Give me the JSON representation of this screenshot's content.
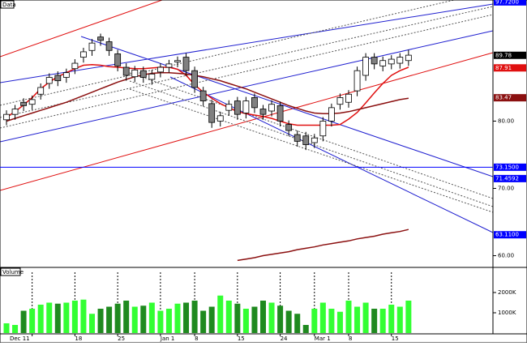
{
  "chart_data": {
    "type": "candlestick",
    "title": "Data",
    "categories": [
      null,
      null,
      null,
      "Dec 11",
      null,
      null,
      null,
      null,
      "18",
      null,
      null,
      null,
      null,
      "25",
      null,
      null,
      null,
      null,
      "Jan 1",
      null,
      null,
      null,
      "8",
      null,
      null,
      null,
      null,
      "15",
      null,
      null,
      null,
      null,
      "24",
      null,
      null,
      null,
      "Mar 1",
      null,
      null,
      null,
      "8",
      null,
      null,
      null,
      null,
      "15",
      null,
      null
    ],
    "open": [
      80.2,
      81.0,
      82.8,
      82.5,
      84.0,
      85.6,
      86.8,
      86.5,
      87.8,
      89.5,
      90.5,
      92.5,
      91.8,
      90.0,
      88.0,
      86.6,
      87.5,
      86.2,
      87.3,
      88.0,
      88.8,
      89.5,
      87.5,
      84.5,
      82.6,
      80.0,
      81.6,
      83.0,
      81.2,
      83.5,
      81.8,
      81.5,
      82.3,
      79.5,
      78.0,
      77.8,
      76.8,
      77.8,
      80.0,
      82.5,
      82.8,
      84.5,
      86.8,
      89.5,
      88.2,
      88.5,
      88.6,
      89.0
    ],
    "high": [
      81.6,
      82.4,
      83.4,
      83.8,
      85.6,
      87.1,
      87.4,
      87.8,
      89.2,
      90.9,
      92.2,
      93.0,
      92.4,
      90.6,
      88.6,
      88.2,
      88.1,
      87.6,
      88.6,
      89.1,
      89.6,
      90.1,
      88.1,
      85.1,
      83.2,
      81.4,
      83.1,
      83.6,
      83.6,
      84.1,
      82.4,
      83.1,
      82.9,
      80.1,
      78.6,
      78.4,
      78.1,
      80.6,
      82.6,
      84.1,
      84.6,
      88.1,
      90.1,
      90.1,
      89.6,
      89.8,
      90.1,
      90.6
    ],
    "low": [
      79.4,
      80.2,
      81.5,
      81.7,
      83.2,
      84.8,
      85.2,
      85.7,
      87.0,
      88.7,
      89.7,
      91.2,
      89.7,
      87.4,
      86.0,
      85.8,
      85.7,
      85.4,
      86.5,
      87.2,
      88.0,
      86.7,
      84.2,
      82.2,
      79.0,
      79.2,
      80.8,
      80.2,
      80.4,
      81.2,
      80.2,
      80.7,
      79.2,
      77.8,
      76.2,
      75.7,
      76.0,
      77.0,
      79.2,
      81.7,
      82.0,
      83.7,
      86.0,
      87.7,
      87.4,
      87.7,
      87.8,
      88.2
    ],
    "close": [
      81.0,
      81.8,
      82.3,
      83.2,
      85.0,
      86.5,
      86.0,
      87.2,
      88.6,
      90.3,
      91.6,
      92.0,
      90.5,
      88.2,
      86.8,
      87.6,
      86.5,
      87.0,
      88.0,
      88.5,
      89.0,
      87.5,
      85.0,
      83.0,
      79.8,
      80.8,
      82.5,
      81.0,
      83.0,
      82.0,
      81.0,
      82.5,
      80.0,
      78.6,
      77.0,
      76.5,
      77.5,
      80.0,
      82.0,
      83.5,
      84.0,
      87.5,
      89.5,
      88.5,
      89.0,
      89.2,
      89.5,
      89.8
    ],
    "up_color": "#ffffff",
    "down_color": "#808080",
    "series": [
      {
        "color": "#e01010",
        "values": [
          80.6,
          81.4,
          82.4,
          83.5,
          84.8,
          85.8,
          86.6,
          87.2,
          87.8,
          88.3,
          88.4,
          88.3,
          88.1,
          88.0,
          87.9,
          87.8,
          87.8,
          87.9,
          88.0,
          88.0,
          87.7,
          86.8,
          85.4,
          84.3,
          83.4,
          82.6,
          82.0,
          81.4,
          81.1,
          80.9,
          80.7,
          80.4,
          80.0,
          79.6,
          79.4,
          79.4,
          79.4,
          79.4,
          79.4,
          79.5,
          80.3,
          81.3,
          82.7,
          84.2,
          85.6,
          86.8,
          87.5,
          88.0
        ]
      },
      {
        "color": "#8b1010",
        "values": [
          80.0,
          80.4,
          80.8,
          81.2,
          81.6,
          82.0,
          82.4,
          82.8,
          83.3,
          83.8,
          84.3,
          84.8,
          85.3,
          85.8,
          86.2,
          86.6,
          86.9,
          87.1,
          87.2,
          87.2,
          87.1,
          87.0,
          86.8,
          86.6,
          86.3,
          86.0,
          85.6,
          85.2,
          84.8,
          84.3,
          83.8,
          83.3,
          82.8,
          82.3,
          81.9,
          81.5,
          81.2,
          81.1,
          81.1,
          81.2,
          81.4,
          81.7,
          82.0,
          82.3,
          82.6,
          82.9,
          83.2,
          83.4
        ]
      },
      {
        "color": "#8b1010",
        "values": [
          null,
          null,
          null,
          null,
          null,
          null,
          null,
          null,
          null,
          null,
          null,
          null,
          null,
          null,
          null,
          null,
          null,
          null,
          null,
          null,
          null,
          null,
          null,
          null,
          null,
          null,
          null,
          59.3,
          59.5,
          59.7,
          60.0,
          60.2,
          60.4,
          60.6,
          60.9,
          61.1,
          61.3,
          61.6,
          61.8,
          62.0,
          62.2,
          62.5,
          62.7,
          62.9,
          63.2,
          63.4,
          63.6,
          63.9
        ]
      }
    ],
    "ylim": [
      58.5,
      98
    ],
    "yticks": [
      {
        "value": 60,
        "label": "60.00"
      },
      {
        "value": 70,
        "label": "70.00"
      },
      {
        "value": 80,
        "label": "80.00"
      }
    ],
    "price_lines": [
      {
        "value": 73.15,
        "label": "73.1500",
        "color": "#0000ff"
      }
    ],
    "markers": [
      {
        "value": 97.72,
        "label": "97.7200",
        "color": "#0000ff"
      },
      {
        "value": 89.78,
        "label": "89.78",
        "color": "#000000"
      },
      {
        "value": 87.91,
        "label": "87.91",
        "color": "#e01010"
      },
      {
        "value": 83.47,
        "label": "83.47",
        "color": "#8b1010"
      },
      {
        "value": 71.4592,
        "label": "71.4592",
        "color": "#0000ff"
      },
      {
        "value": 63.11,
        "label": "63.1100",
        "color": "#0000ff"
      }
    ],
    "volume": {
      "title": "Volume",
      "up_color": "#33ff33",
      "down_color": "#1f8a1f",
      "values": [
        480,
        400,
        1100,
        1200,
        1400,
        1500,
        1450,
        1500,
        1600,
        1650,
        950,
        1200,
        1300,
        1450,
        1600,
        1300,
        1350,
        1500,
        1100,
        1200,
        1450,
        1500,
        1600,
        1100,
        1300,
        1850,
        1600,
        1450,
        1200,
        1300,
        1600,
        1500,
        1350,
        1100,
        950,
        400,
        1200,
        1500,
        1200,
        1050,
        1600,
        1300,
        1500,
        1200,
        1200,
        1400,
        1300,
        1600
      ],
      "ylim": [
        0,
        3000
      ],
      "yticks": [
        {
          "value": 1000,
          "label": "1000K"
        },
        {
          "value": 2000,
          "label": "2000K"
        }
      ]
    }
  }
}
